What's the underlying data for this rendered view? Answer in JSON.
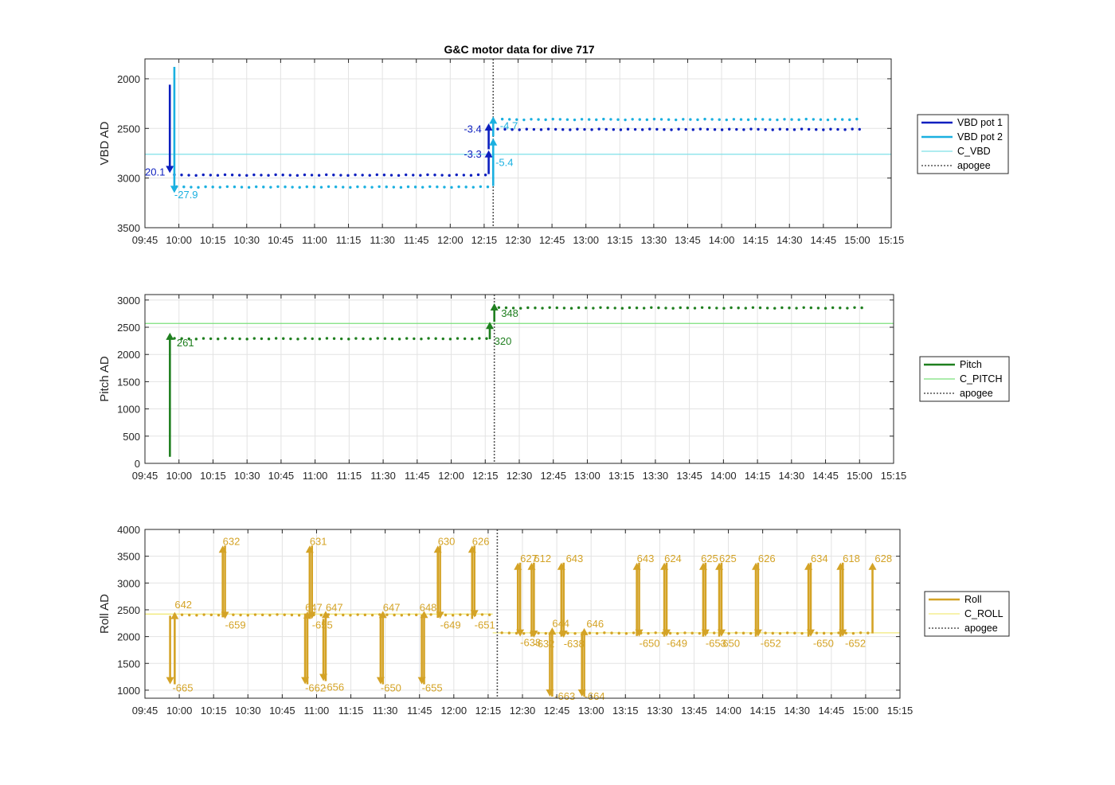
{
  "figure_title": "G&C motor data for dive 717",
  "chart_data": [
    {
      "type": "line",
      "key": "vbd",
      "ylabel": "VBD AD",
      "ylim": [
        1800,
        3500
      ],
      "y_reversed": true,
      "yticks": [
        2000,
        2500,
        3000,
        3500
      ],
      "xlim": [
        "09:45",
        "15:15"
      ],
      "xticks": [
        "09:45",
        "10:00",
        "10:15",
        "10:30",
        "10:45",
        "11:00",
        "11:15",
        "11:30",
        "11:45",
        "12:00",
        "12:15",
        "12:30",
        "12:45",
        "13:00",
        "13:15",
        "13:30",
        "13:45",
        "14:00",
        "14:15",
        "14:30",
        "14:45",
        "15:00",
        "15:15"
      ],
      "apogee": "12:19",
      "ref_lines": [
        {
          "name": "C_VBD",
          "y": 2760,
          "color": "#7fe0e8"
        }
      ],
      "series": [
        {
          "name": "VBD pot 1",
          "color": "#0c1fbf",
          "start": "09:58",
          "end": "12:17",
          "y": 2970
        },
        {
          "name": "VBD pot 1",
          "color": "#0c1fbf",
          "start": "12:21",
          "end": "15:03",
          "y": 2510
        },
        {
          "name": "VBD pot 2",
          "color": "#1ab0e0",
          "start": "09:59",
          "end": "12:17",
          "y": 3090
        },
        {
          "name": "VBD pot 2",
          "color": "#1ab0e0",
          "start": "12:23",
          "end": "15:03",
          "y": 2410
        }
      ],
      "moves": [
        {
          "t": "09:56",
          "from": 2060,
          "to": 2950,
          "color": "#0c1fbf",
          "label": "20.1",
          "lx": "09:45",
          "ly": 2975
        },
        {
          "t": "09:58",
          "from": 1880,
          "to": 3150,
          "color": "#1ab0e0",
          "label": "-27.9",
          "lx": "09:58",
          "ly": 3205
        },
        {
          "t": "12:17",
          "from": 2960,
          "to": 2720,
          "color": "#0c1fbf",
          "label": "-3.3",
          "lx": "12:06",
          "ly": 2795
        },
        {
          "t": "12:17",
          "from": 2710,
          "to": 2450,
          "color": "#0c1fbf",
          "label": "-3.4",
          "lx": "12:06",
          "ly": 2540
        },
        {
          "t": "12:19",
          "from": 3080,
          "to": 2600,
          "color": "#1ab0e0",
          "label": "-5.4",
          "lx": "12:20",
          "ly": 2880
        },
        {
          "t": "12:19",
          "from": 2580,
          "to": 2380,
          "color": "#1ab0e0",
          "label": "-4.7",
          "lx": "12:22",
          "ly": 2510
        }
      ],
      "legend": [
        {
          "label": "VBD pot 1",
          "color": "#0c1fbf",
          "style": "thick"
        },
        {
          "label": "VBD pot 2",
          "color": "#1ab0e0",
          "style": "thick"
        },
        {
          "label": "C_VBD",
          "color": "#7fe0e8",
          "style": "thin"
        },
        {
          "label": "apogee",
          "color": "#555555",
          "style": "dotted"
        }
      ]
    },
    {
      "type": "line",
      "key": "pitch",
      "ylabel": "Pitch AD",
      "ylim": [
        0,
        3100
      ],
      "y_reversed": false,
      "yticks": [
        0,
        500,
        1000,
        1500,
        2000,
        2500,
        3000
      ],
      "xlim": [
        "09:45",
        "15:15"
      ],
      "xticks": [
        "09:45",
        "10:00",
        "10:15",
        "10:30",
        "10:45",
        "11:00",
        "11:15",
        "11:30",
        "11:45",
        "12:00",
        "12:15",
        "12:30",
        "12:45",
        "13:00",
        "13:15",
        "13:30",
        "13:45",
        "14:00",
        "14:15",
        "14:30",
        "14:45",
        "15:00",
        "15:15"
      ],
      "apogee": "12:19",
      "ref_lines": [
        {
          "name": "C_PITCH",
          "y": 2570,
          "color": "#7be07b"
        }
      ],
      "series": [
        {
          "name": "Pitch",
          "color": "#1f7f1f",
          "start": "09:58",
          "end": "12:17",
          "y": 2290
        },
        {
          "name": "Pitch",
          "color": "#1f7f1f",
          "start": "12:21",
          "end": "15:03",
          "y": 2855
        }
      ],
      "moves": [
        {
          "t": "09:56",
          "from": 120,
          "to": 2400,
          "color": "#1f7f1f",
          "label": "261",
          "lx": "09:59",
          "ly": 2150
        },
        {
          "t": "12:17",
          "from": 2280,
          "to": 2600,
          "color": "#1f7f1f",
          "label": "320",
          "lx": "12:19",
          "ly": 2180
        },
        {
          "t": "12:19",
          "from": 2600,
          "to": 2940,
          "color": "#1f7f1f",
          "label": "348",
          "lx": "12:22",
          "ly": 2690
        }
      ],
      "legend": [
        {
          "label": "Pitch",
          "color": "#1f7f1f",
          "style": "thick"
        },
        {
          "label": "C_PITCH",
          "color": "#7be07b",
          "style": "thin"
        },
        {
          "label": "apogee",
          "color": "#555555",
          "style": "dotted"
        }
      ]
    },
    {
      "type": "line",
      "key": "roll",
      "ylabel": "Roll AD",
      "ylim": [
        850,
        4000
      ],
      "y_reversed": false,
      "yticks": [
        1000,
        1500,
        2000,
        2500,
        3000,
        3500,
        4000
      ],
      "xlim": [
        "09:45",
        "15:15"
      ],
      "xticks": [
        "09:45",
        "10:00",
        "10:15",
        "10:30",
        "10:45",
        "11:00",
        "11:15",
        "11:30",
        "11:45",
        "12:00",
        "12:15",
        "12:30",
        "12:45",
        "13:00",
        "13:15",
        "13:30",
        "13:45",
        "14:00",
        "14:15",
        "14:30",
        "14:45",
        "15:00",
        "15:15"
      ],
      "apogee": "12:19",
      "ref_lines": [
        {
          "name": "C_ROLL",
          "y": 2420,
          "color": "#f2ea7a",
          "start": "09:45",
          "end": "12:17"
        },
        {
          "name": "C_ROLL",
          "y": 2070,
          "color": "#f2ea7a",
          "start": "12:17",
          "end": "15:15"
        }
      ],
      "series": [
        {
          "name": "Roll",
          "color": "#d4a326",
          "start": "09:58",
          "end": "12:17",
          "y": 2405
        },
        {
          "name": "Roll",
          "color": "#d4a326",
          "start": "12:21",
          "end": "15:03",
          "y": 2065
        }
      ],
      "moves": [
        {
          "t": "09:56",
          "from": 2390,
          "to": 1110,
          "color": "#d4a326",
          "label": "-665",
          "lx": "09:57",
          "ly": 980
        },
        {
          "t": "09:58",
          "from": 1110,
          "to": 2460,
          "color": "#d4a326",
          "label": "642",
          "lx": "09:58",
          "ly": 2530
        },
        {
          "t": "10:19",
          "from": 2360,
          "to": 3700,
          "color": "#d4a326",
          "label": "632",
          "lx": "10:19",
          "ly": 3710
        },
        {
          "t": "10:20",
          "from": 3700,
          "to": 2330,
          "color": "#d4a326",
          "label": "-659",
          "lx": "10:20",
          "ly": 2150
        },
        {
          "t": "10:55",
          "from": 2430,
          "to": 1110,
          "color": "#d4a326",
          "label": "-662",
          "lx": "10:55",
          "ly": 980
        },
        {
          "t": "10:56",
          "from": 1110,
          "to": 2470,
          "color": "#d4a326",
          "label": "647",
          "lx": "10:55",
          "ly": 2480
        },
        {
          "t": "10:57",
          "from": 2330,
          "to": 3700,
          "color": "#d4a326",
          "label": "631",
          "lx": "10:57",
          "ly": 3710
        },
        {
          "t": "10:58",
          "from": 3700,
          "to": 2330,
          "color": "#d4a326",
          "label": "-655",
          "lx": "10:58",
          "ly": 2150
        },
        {
          "t": "11:03",
          "from": 2330,
          "to": 1170,
          "color": "#d4a326",
          "label": "-656",
          "lx": "11:03",
          "ly": 990
        },
        {
          "t": "11:04",
          "from": 1170,
          "to": 2480,
          "color": "#d4a326",
          "label": "647",
          "lx": "11:04",
          "ly": 2480
        },
        {
          "t": "11:28",
          "from": 2400,
          "to": 1110,
          "color": "#d4a326",
          "label": "-650",
          "lx": "11:28",
          "ly": 980
        },
        {
          "t": "11:29",
          "from": 1110,
          "to": 2480,
          "color": "#d4a326",
          "label": "647",
          "lx": "11:29",
          "ly": 2480
        },
        {
          "t": "11:46",
          "from": 2410,
          "to": 1110,
          "color": "#d4a326",
          "label": "-655",
          "lx": "11:46",
          "ly": 980
        },
        {
          "t": "11:47",
          "from": 1110,
          "to": 2480,
          "color": "#d4a326",
          "label": "648",
          "lx": "11:45",
          "ly": 2480
        },
        {
          "t": "11:53",
          "from": 2350,
          "to": 3700,
          "color": "#d4a326",
          "label": "630",
          "lx": "11:53",
          "ly": 3710
        },
        {
          "t": "11:54",
          "from": 3700,
          "to": 2330,
          "color": "#d4a326",
          "label": "-649",
          "lx": "11:54",
          "ly": 2150
        },
        {
          "t": "12:08",
          "from": 2330,
          "to": 3700,
          "color": "#d4a326",
          "label": "626",
          "lx": "12:08",
          "ly": 3710
        },
        {
          "t": "12:09",
          "from": 3700,
          "to": 2360,
          "color": "#d4a326",
          "label": "-651",
          "lx": "12:09",
          "ly": 2150
        },
        {
          "t": "12:28",
          "from": 2060,
          "to": 3380,
          "color": "#d4a326",
          "label": "627",
          "lx": "12:29",
          "ly": 3390
        },
        {
          "t": "12:29",
          "from": 3380,
          "to": 2000,
          "color": "#d4a326",
          "label": "-638",
          "lx": "12:29",
          "ly": 1820
        },
        {
          "t": "12:34",
          "from": 2000,
          "to": 3380,
          "color": "#d4a326",
          "label": "612",
          "lx": "12:35",
          "ly": 3390
        },
        {
          "t": "12:35",
          "from": 3380,
          "to": 1980,
          "color": "#d4a326",
          "label": "-632",
          "lx": "12:35",
          "ly": 1800
        },
        {
          "t": "12:42",
          "from": 2080,
          "to": 880,
          "color": "#d4a326",
          "label": "-663",
          "lx": "12:44",
          "ly": 820
        },
        {
          "t": "12:43",
          "from": 880,
          "to": 2170,
          "color": "#d4a326",
          "label": "644",
          "lx": "12:43",
          "ly": 2180
        },
        {
          "t": "12:47",
          "from": 2000,
          "to": 3380,
          "color": "#d4a326",
          "label": "643",
          "lx": "12:49",
          "ly": 3390
        },
        {
          "t": "12:48",
          "from": 3380,
          "to": 1980,
          "color": "#d4a326",
          "label": "-638",
          "lx": "12:48",
          "ly": 1800
        },
        {
          "t": "12:56",
          "from": 2070,
          "to": 880,
          "color": "#d4a326",
          "label": "-664",
          "lx": "12:57",
          "ly": 820
        },
        {
          "t": "12:57",
          "from": 880,
          "to": 2160,
          "color": "#d4a326",
          "label": "646",
          "lx": "12:58",
          "ly": 2170
        },
        {
          "t": "13:20",
          "from": 2010,
          "to": 3380,
          "color": "#d4a326",
          "label": "643",
          "lx": "13:20",
          "ly": 3390
        },
        {
          "t": "13:21",
          "from": 3380,
          "to": 2000,
          "color": "#d4a326",
          "label": "-650",
          "lx": "13:21",
          "ly": 1810
        },
        {
          "t": "13:32",
          "from": 2000,
          "to": 3380,
          "color": "#d4a326",
          "label": "624",
          "lx": "13:32",
          "ly": 3390
        },
        {
          "t": "13:33",
          "from": 3380,
          "to": 2000,
          "color": "#d4a326",
          "label": "-649",
          "lx": "13:33",
          "ly": 1810
        },
        {
          "t": "13:49",
          "from": 2000,
          "to": 3380,
          "color": "#d4a326",
          "label": "625",
          "lx": "13:48",
          "ly": 3390
        },
        {
          "t": "13:50",
          "from": 3380,
          "to": 2000,
          "color": "#d4a326",
          "label": "-653",
          "lx": "13:50",
          "ly": 1810
        },
        {
          "t": "13:56",
          "from": 2000,
          "to": 3380,
          "color": "#d4a326",
          "label": "625",
          "lx": "13:56",
          "ly": 3390
        },
        {
          "t": "13:57",
          "from": 3380,
          "to": 2000,
          "color": "#d4a326",
          "label": "-650",
          "lx": "13:56",
          "ly": 1810
        },
        {
          "t": "14:12",
          "from": 2000,
          "to": 3380,
          "color": "#d4a326",
          "label": "626",
          "lx": "14:13",
          "ly": 3390
        },
        {
          "t": "14:13",
          "from": 3380,
          "to": 2000,
          "color": "#d4a326",
          "label": "-652",
          "lx": "14:14",
          "ly": 1810
        },
        {
          "t": "14:35",
          "from": 2000,
          "to": 3380,
          "color": "#d4a326",
          "label": "634",
          "lx": "14:36",
          "ly": 3390
        },
        {
          "t": "14:36",
          "from": 3380,
          "to": 2000,
          "color": "#d4a326",
          "label": "-650",
          "lx": "14:37",
          "ly": 1810
        },
        {
          "t": "14:49",
          "from": 2000,
          "to": 3380,
          "color": "#d4a326",
          "label": "618",
          "lx": "14:50",
          "ly": 3390
        },
        {
          "t": "14:50",
          "from": 3380,
          "to": 2000,
          "color": "#d4a326",
          "label": "-652",
          "lx": "14:51",
          "ly": 1810
        },
        {
          "t": "15:03",
          "from": 2060,
          "to": 3380,
          "color": "#d4a326",
          "label": "628",
          "lx": "15:04",
          "ly": 3390
        }
      ],
      "legend": [
        {
          "label": "Roll",
          "color": "#d4a326",
          "style": "thick"
        },
        {
          "label": "C_ROLL",
          "color": "#f2ea7a",
          "style": "thin"
        },
        {
          "label": "apogee",
          "color": "#555555",
          "style": "dotted"
        }
      ]
    }
  ]
}
